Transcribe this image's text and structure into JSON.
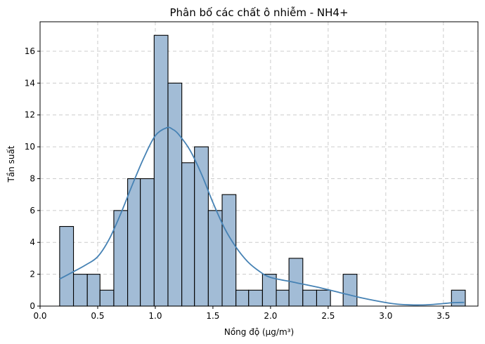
{
  "chart_data": {
    "type": "bar",
    "title": "Phân bố các chất ô nhiễm - NH4+",
    "xlabel": "Nồng độ (µg/m³)",
    "ylabel": "Tần suất",
    "xlim": [
      0.0,
      3.8
    ],
    "ylim": [
      0,
      17.85
    ],
    "xticks": [
      "0.0",
      "0.5",
      "1.0",
      "1.5",
      "2.0",
      "2.5",
      "3.0",
      "3.5"
    ],
    "yticks": [
      "0",
      "2",
      "4",
      "6",
      "8",
      "10",
      "12",
      "14",
      "16"
    ],
    "grid": true,
    "bins": [
      {
        "x0": 0.17,
        "x1": 0.29,
        "count": 5
      },
      {
        "x0": 0.29,
        "x1": 0.41,
        "count": 2
      },
      {
        "x0": 0.41,
        "x1": 0.52,
        "count": 2
      },
      {
        "x0": 0.52,
        "x1": 0.64,
        "count": 1
      },
      {
        "x0": 0.64,
        "x1": 0.76,
        "count": 6
      },
      {
        "x0": 0.76,
        "x1": 0.87,
        "count": 8
      },
      {
        "x0": 0.87,
        "x1": 0.99,
        "count": 8
      },
      {
        "x0": 0.99,
        "x1": 1.11,
        "count": 17
      },
      {
        "x0": 1.11,
        "x1": 1.23,
        "count": 14
      },
      {
        "x0": 1.23,
        "x1": 1.34,
        "count": 9
      },
      {
        "x0": 1.34,
        "x1": 1.46,
        "count": 10
      },
      {
        "x0": 1.46,
        "x1": 1.58,
        "count": 6
      },
      {
        "x0": 1.58,
        "x1": 1.7,
        "count": 7
      },
      {
        "x0": 1.7,
        "x1": 1.81,
        "count": 1
      },
      {
        "x0": 1.81,
        "x1": 1.93,
        "count": 1
      },
      {
        "x0": 1.93,
        "x1": 2.05,
        "count": 2
      },
      {
        "x0": 2.05,
        "x1": 2.16,
        "count": 1
      },
      {
        "x0": 2.16,
        "x1": 2.28,
        "count": 3
      },
      {
        "x0": 2.28,
        "x1": 2.4,
        "count": 1
      },
      {
        "x0": 2.4,
        "x1": 2.52,
        "count": 1
      },
      {
        "x0": 2.52,
        "x1": 2.63,
        "count": 0
      },
      {
        "x0": 2.63,
        "x1": 2.75,
        "count": 2
      },
      {
        "x0": 2.75,
        "x1": 2.87,
        "count": 0
      },
      {
        "x0": 2.87,
        "x1": 2.98,
        "count": 0
      },
      {
        "x0": 2.98,
        "x1": 3.1,
        "count": 0
      },
      {
        "x0": 3.1,
        "x1": 3.22,
        "count": 0
      },
      {
        "x0": 3.22,
        "x1": 3.33,
        "count": 0
      },
      {
        "x0": 3.33,
        "x1": 3.45,
        "count": 0
      },
      {
        "x0": 3.45,
        "x1": 3.57,
        "count": 0
      },
      {
        "x0": 3.57,
        "x1": 3.69,
        "count": 1
      }
    ],
    "kde": {
      "x": [
        0.17,
        0.3,
        0.4,
        0.5,
        0.6,
        0.7,
        0.8,
        0.9,
        1.0,
        1.1,
        1.15,
        1.2,
        1.3,
        1.4,
        1.5,
        1.6,
        1.7,
        1.8,
        1.9,
        2.0,
        2.2,
        2.4,
        2.6,
        2.8,
        3.0,
        3.1,
        3.2,
        3.3,
        3.4,
        3.5,
        3.6,
        3.68
      ],
      "y": [
        1.7,
        2.2,
        2.6,
        3.1,
        4.2,
        5.8,
        7.6,
        9.3,
        10.7,
        11.2,
        11.1,
        10.8,
        9.8,
        8.3,
        6.5,
        4.9,
        3.7,
        2.8,
        2.2,
        1.8,
        1.5,
        1.2,
        0.85,
        0.5,
        0.22,
        0.12,
        0.08,
        0.07,
        0.1,
        0.16,
        0.22,
        0.23
      ]
    },
    "colors": {
      "bar_fill": "#a2bcd6",
      "bar_edge": "#000000",
      "kde_line": "#4682b4",
      "grid": "#cccccc"
    }
  }
}
